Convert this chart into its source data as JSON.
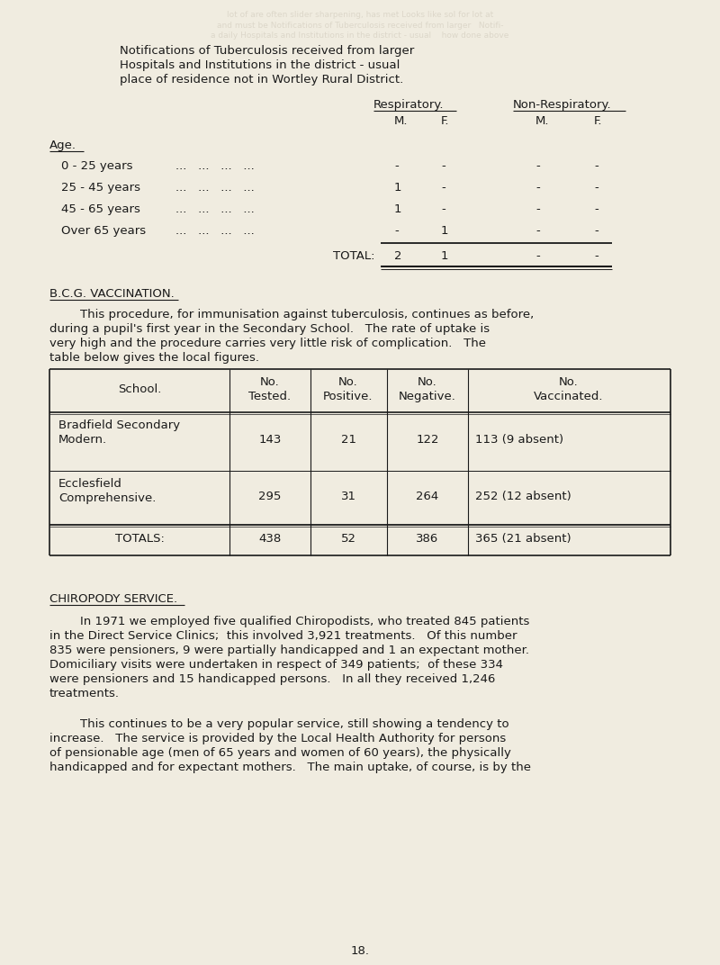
{
  "bg_color": "#f0ece0",
  "text_color": "#1a1a1a",
  "page_number": "18.",
  "header_lines": [
    "Notifications of Tuberculosis received from larger",
    "Hospitals and Institutions in the district - usual",
    "place of residence not in Wortley Rural District."
  ],
  "resp_header": "Respiratory.",
  "non_resp_header": "Non-Respiratory.",
  "mf_headers": [
    "M.",
    "F.",
    "M.",
    "F."
  ],
  "age_label": "Age.",
  "age_rows": [
    {
      "label": "0 - 25 years",
      "vals": [
        "-",
        "-",
        "-",
        "-"
      ]
    },
    {
      "label": "25 - 45 years",
      "vals": [
        "1",
        "-",
        "-",
        "-"
      ]
    },
    {
      "label": "45 - 65 years",
      "vals": [
        "1",
        "-",
        "-",
        "-"
      ]
    },
    {
      "label": "Over 65 years",
      "vals": [
        "-",
        "1",
        "-",
        "-"
      ]
    }
  ],
  "total_label": "TOTAL:",
  "total_vals": [
    "2",
    "1",
    "-",
    "-"
  ],
  "bcg_heading": "B.C.G. VACCINATION.",
  "bcg_para_lines": [
    "        This procedure, for immunisation against tuberculosis, continues as before,",
    "during a pupil's first year in the Secondary School.   The rate of uptake is",
    "very high and the procedure carries very little risk of complication.   The",
    "table below gives the local figures."
  ],
  "vacc_table": {
    "col_labels": [
      "School.",
      "No.\nTested.",
      "No.\nPositive.",
      "No.\nNegative.",
      "No.\nVaccinated."
    ],
    "rows": [
      [
        "Bradfield Secondary\nModern.",
        "143",
        "21",
        "122",
        "113 (9 absent)"
      ],
      [
        "Ecclesfield\nComprehensive.",
        "295",
        "31",
        "264",
        "252 (12 absent)"
      ]
    ],
    "totals": [
      "TOTALS:",
      "438",
      "52",
      "386",
      "365 (21 absent)"
    ]
  },
  "chiropody_heading": "CHIROPODY SERVICE.",
  "chiropody_para1_lines": [
    "        In 1971 we employed five qualified Chiropodists, who treated 845 patients",
    "in the Direct Service Clinics;  this involved 3,921 treatments.   Of this number",
    "835 were pensioners, 9 were partially handicapped and 1 an expectant mother.",
    "Domiciliary visits were undertaken in respect of 349 patients;  of these 334",
    "were pensioners and 15 handicapped persons.   In all they received 1,246",
    "treatments."
  ],
  "chiropody_para2_lines": [
    "        This continues to be a very popular service, still showing a tendency to",
    "increase.   The service is provided by the Local Health Authority for persons",
    "of pensionable age (men of 65 years and women of 60 years), the physically",
    "handicapped and for expectant mothers.   The main uptake, of course, is by the"
  ]
}
